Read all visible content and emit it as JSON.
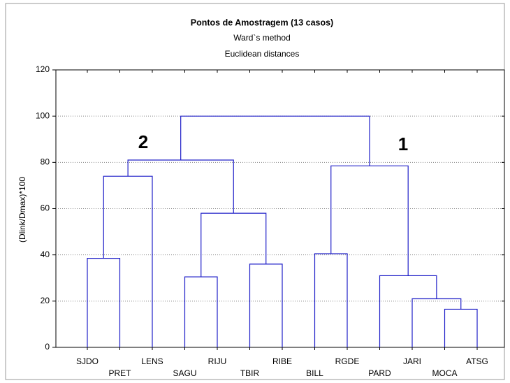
{
  "chart_data": {
    "type": "dendrogram",
    "title": "Pontos de Amostragem (13 casos)",
    "subtitle": [
      "Ward`s method",
      "Euclidean distances"
    ],
    "y_label": "(Dlink/Dmax)*100",
    "ylim": [
      0,
      120
    ],
    "yticks": [
      0,
      20,
      40,
      60,
      80,
      100,
      120
    ],
    "grid": true,
    "color": "#2020c8",
    "annotations": [
      "2",
      "1"
    ],
    "tree": {
      "height": 100,
      "children": [
        {
          "height": 81,
          "children": [
            {
              "height": 74,
              "children": [
                {
                  "height": 38.5,
                  "children": [
                    "SJDO",
                    "PRET"
                  ]
                },
                "LENS"
              ]
            },
            {
              "height": 58,
              "children": [
                {
                  "height": 30.5,
                  "children": [
                    "SAGU",
                    "RIJU"
                  ]
                },
                {
                  "height": 36,
                  "children": [
                    "TBIR",
                    "RIBE"
                  ]
                }
              ]
            }
          ]
        },
        {
          "height": 78.5,
          "children": [
            {
              "height": 40.5,
              "children": [
                "BILL",
                "RGDE"
              ]
            },
            {
              "height": 31,
              "children": [
                "PARD",
                {
                  "height": 21,
                  "children": [
                    "JARI",
                    {
                      "height": 16.5,
                      "children": [
                        "MOCA",
                        "ATSG"
                      ]
                    }
                  ]
                }
              ]
            }
          ]
        }
      ]
    }
  }
}
